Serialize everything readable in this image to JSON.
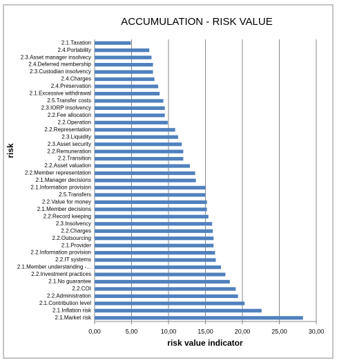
{
  "chart_data": {
    "type": "barh",
    "title": "ACCUMULATION - RISK VALUE",
    "y_label": "risk",
    "x_label": "risk value indicator",
    "categories": [
      "2.1.Taxation",
      "2.4.Portability",
      "2.3.Asset manager insolvecy",
      "2.4.Deferred membership",
      "2.3.Custodian insolvency",
      "2.4.Charges",
      "2.4.Preservation",
      "2.1.Excessive withdrawal",
      "2.5.Transfer costs",
      "2.3.IORP insolvency",
      "2.2.Fee allocation",
      "2.2.Operation",
      "2.2.Representation",
      "2.3.Liquidity",
      "2.3.Asset security",
      "2.2.Remuneration",
      "2.2.Transition",
      "2.2.Asset valuation",
      "2.2.Member representation",
      "2.1.Manager decisions",
      "2.1.Information provision",
      "2.5.Transfers",
      "2.2.Value for money",
      "2.1.Member decisions",
      "2.2.Record keeping",
      "2.3.Insolvency",
      "2.2.Charges",
      "2.2.Outsourcing",
      "2.1.Provider",
      "2.2.Information provision",
      "2.2.IT systems",
      "2.1.Member understanding -...",
      "2.2.Investment practices",
      "2.1.No guarantee",
      "2.2.COI",
      "2.2.Administration",
      "2.1.Contribution level",
      "2.1.Inflation risk",
      "2.1.Market risk"
    ],
    "values": [
      4.9,
      7.4,
      7.7,
      7.9,
      7.9,
      8.1,
      8.6,
      8.8,
      9.3,
      9.5,
      9.5,
      9.9,
      10.9,
      11.3,
      11.8,
      12.0,
      12.0,
      12.9,
      13.6,
      13.7,
      15.0,
      15.0,
      15.2,
      15.2,
      15.4,
      15.9,
      16.0,
      16.1,
      16.1,
      16.3,
      16.4,
      17.1,
      17.7,
      18.3,
      19.1,
      19.4,
      20.3,
      22.6,
      28.2
    ],
    "color": "#4f81bd",
    "xlim": [
      0,
      30
    ],
    "xticks": [
      {
        "value": 0,
        "label": "0,00"
      },
      {
        "value": 5,
        "label": "5,00"
      },
      {
        "value": 10,
        "label": "10,00"
      },
      {
        "value": 15,
        "label": "15,00"
      },
      {
        "value": 20,
        "label": "20,00"
      },
      {
        "value": 25,
        "label": "25,00"
      },
      {
        "value": 30,
        "label": "30,00"
      }
    ],
    "grid": true
  }
}
